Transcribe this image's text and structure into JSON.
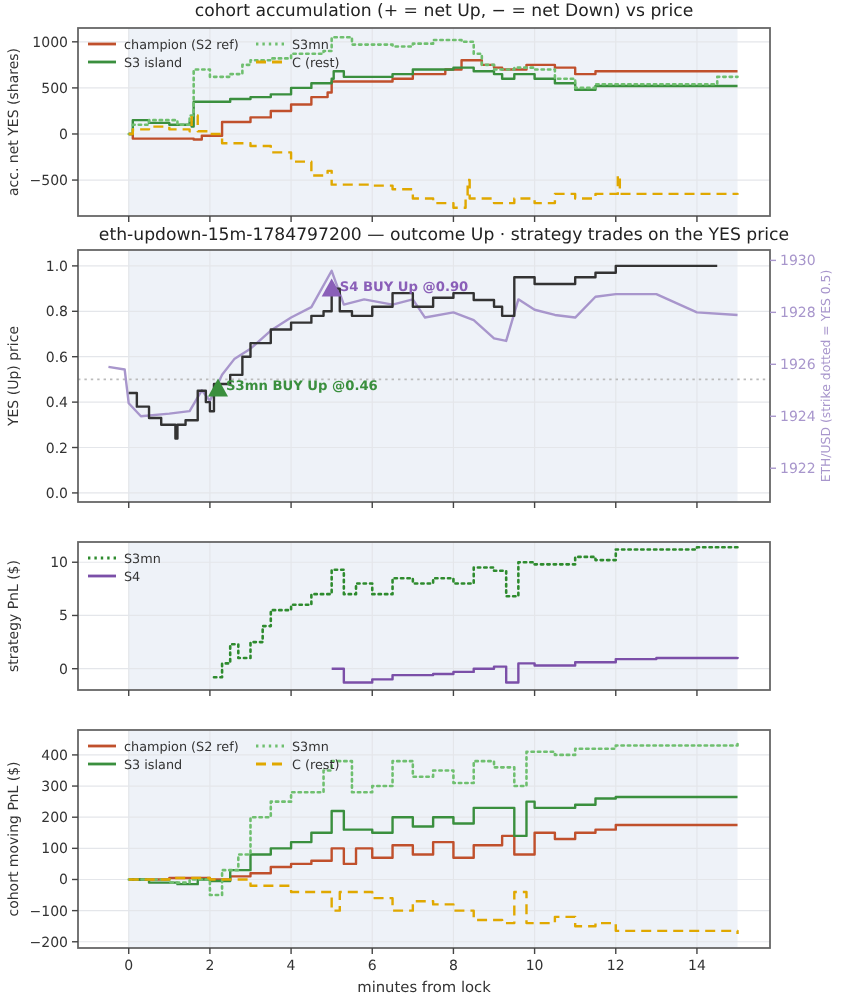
{
  "chart_data": [
    {
      "type": "step",
      "title": "cohort accumulation (+ = net Up, − = net Down) vs price",
      "ylabel": "acc. net YES (shares)",
      "xlim": [
        -1.25,
        15.8
      ],
      "xticks": [
        {
          "value": 0,
          "label": null
        },
        {
          "value": 2,
          "label": null
        },
        {
          "value": 4,
          "label": null
        },
        {
          "value": 6,
          "label": null
        },
        {
          "value": 8,
          "label": null
        },
        {
          "value": 10,
          "label": null
        },
        {
          "value": 12,
          "label": null
        },
        {
          "value": 14,
          "label": null
        }
      ],
      "ylim": [
        -890,
        1150
      ],
      "yticks": [
        -500,
        0,
        500,
        1000
      ],
      "grid": true,
      "legend": "top left",
      "tick_labels": "y",
      "marker": "none",
      "bands": [
        {
          "axis": "x",
          "from": 0,
          "to": 15,
          "color": "#eef2f8"
        }
      ],
      "series": [
        {
          "name": "champion (S2 ref)",
          "color": "#c0502c",
          "line_style": "solid",
          "x": [
            0,
            0.1,
            1.6,
            1.8,
            2.3,
            3,
            3.5,
            4,
            4.5,
            4.9,
            5,
            6.5,
            7,
            7.8,
            8.2,
            8.7,
            9,
            9.2,
            9.8,
            10.5,
            11,
            11.5,
            15
          ],
          "values": [
            0,
            -50,
            -60,
            -20,
            130,
            180,
            250,
            320,
            400,
            450,
            570,
            600,
            650,
            700,
            800,
            750,
            720,
            700,
            750,
            720,
            650,
            680,
            680
          ]
        },
        {
          "name": "S3 island",
          "color": "#3a8f3e",
          "line_style": "solid",
          "x": [
            0,
            0.1,
            0.5,
            1,
            1.5,
            1.55,
            1.6,
            2.5,
            3,
            3.5,
            4,
            4.5,
            5,
            5.05,
            5.3,
            6,
            6.5,
            7,
            8,
            8.5,
            9,
            9.2,
            9.5,
            10,
            10.5,
            11,
            11.5,
            15
          ],
          "values": [
            0,
            150,
            120,
            100,
            130,
            80,
            350,
            380,
            400,
            430,
            500,
            550,
            600,
            680,
            620,
            620,
            650,
            700,
            720,
            680,
            650,
            600,
            650,
            600,
            550,
            480,
            520,
            520
          ]
        },
        {
          "name": "S3mn",
          "color": "#6fbf6f",
          "line_style": "dotted",
          "x": [
            0,
            0.1,
            0.5,
            1.2,
            1.5,
            1.6,
            2,
            2.5,
            2.8,
            3,
            3.5,
            4,
            4.8,
            5,
            5.5,
            6.5,
            7,
            7.5,
            8.2,
            8.5,
            8.7,
            9,
            9.5,
            10,
            10.5,
            11,
            11.5,
            13,
            14.5,
            15
          ],
          "values": [
            0,
            100,
            150,
            100,
            200,
            700,
            620,
            650,
            750,
            800,
            820,
            870,
            900,
            1050,
            970,
            950,
            980,
            1020,
            1000,
            870,
            750,
            700,
            720,
            700,
            600,
            500,
            540,
            540,
            620,
            620
          ]
        },
        {
          "name": "C (rest)",
          "color": "#e0a800",
          "line_style": "dashed",
          "x": [
            0,
            0.1,
            0.5,
            1,
            1.5,
            1.55,
            1.7,
            2,
            2.3,
            3,
            3.5,
            4,
            4.5,
            4.9,
            5,
            6,
            6.5,
            7,
            7.5,
            8,
            8.3,
            8.35,
            8.4,
            9,
            9.5,
            10,
            10.5,
            11,
            11.5,
            12,
            12.05,
            12.1,
            15
          ],
          "values": [
            0,
            50,
            80,
            50,
            30,
            200,
            30,
            0,
            -100,
            -130,
            -200,
            -300,
            -450,
            -400,
            -550,
            -560,
            -600,
            -700,
            -750,
            -800,
            -700,
            -500,
            -700,
            -750,
            -700,
            -750,
            -650,
            -700,
            -650,
            -650,
            -450,
            -650,
            -660
          ]
        }
      ]
    },
    {
      "type": "step",
      "title": "eth-updown-15m-1784797200 — outcome Up · strategy trades on the YES price",
      "ylabel": "YES (Up) price",
      "y2label": "ETH/USD (strike dotted = YES 0.5)",
      "xlim": [
        -1.25,
        15.8
      ],
      "xticks": [
        {
          "value": 0,
          "label": null
        },
        {
          "value": 2,
          "label": null
        },
        {
          "value": 4,
          "label": null
        },
        {
          "value": 6,
          "label": null
        },
        {
          "value": 8,
          "label": null
        },
        {
          "value": 10,
          "label": null
        },
        {
          "value": 12,
          "label": null
        },
        {
          "value": 14,
          "label": null
        }
      ],
      "ylim": [
        -0.04,
        1.07
      ],
      "yticks": [
        {
          "value": 0,
          "label": "0.0"
        },
        {
          "value": 0.2,
          "label": "0.2"
        },
        {
          "value": 0.4,
          "label": "0.4"
        },
        {
          "value": 0.6,
          "label": "0.6"
        },
        {
          "value": 0.8,
          "label": "0.8"
        },
        {
          "value": 1,
          "label": "1.0"
        }
      ],
      "y2lim": [
        1920.7,
        1930.4
      ],
      "y2ticks": [
        1922,
        1924,
        1926,
        1928,
        1930
      ],
      "grid": true,
      "tick_labels": "y",
      "marker": "none",
      "bands": [
        {
          "axis": "x",
          "from": 0,
          "to": 15,
          "color": "#eef2f8"
        }
      ],
      "ref_lines": [
        {
          "axis": "y",
          "value": 0.5,
          "color": "#bbbbbb",
          "line_style": "dotted"
        }
      ],
      "annotations": [
        {
          "text": "S3mn BUY Up @0.46",
          "x": 2.2,
          "y": 0.46
        },
        {
          "text": "S4 BUY Up @0.90",
          "x": 5.0,
          "y": 0.9
        }
      ],
      "series": [
        {
          "type": "line",
          "axis": "y2",
          "color": "#a896cc",
          "line_style": "solid",
          "x": [
            -0.5,
            -0.1,
            0,
            0.3,
            1,
            1.5,
            1.8,
            2,
            2.3,
            2.6,
            3,
            3.5,
            4,
            4.5,
            5,
            5.3,
            5.8,
            6.5,
            7,
            7.3,
            8,
            8.5,
            9,
            9.3,
            9.6,
            10,
            10.5,
            11,
            11.5,
            12,
            13,
            14,
            15
          ],
          "values": [
            1925.9,
            1925.8,
            1924.5,
            1924,
            1924.1,
            1924.2,
            1925,
            1924.6,
            1925.6,
            1926.2,
            1926.6,
            1927.3,
            1927.8,
            1928.2,
            1929.6,
            1928.3,
            1928.5,
            1928.3,
            1928.5,
            1927.8,
            1928,
            1927.7,
            1927,
            1926.9,
            1928.5,
            1928.1,
            1927.9,
            1927.8,
            1928.6,
            1928.7,
            1928.7,
            1928,
            1927.9
          ]
        },
        {
          "color": "#333333",
          "line_style": "solid",
          "x": [
            0,
            0.2,
            0.5,
            0.8,
            1.15,
            1.2,
            1.4,
            1.7,
            1.9,
            2,
            2.1,
            2.5,
            2.8,
            3,
            3.5,
            4,
            4.5,
            4.8,
            5,
            5.2,
            5.5,
            6,
            6.5,
            7,
            7.5,
            8,
            8.5,
            9,
            9.2,
            9.5,
            10,
            11,
            11.5,
            12,
            14.5
          ],
          "values": [
            0.44,
            0.38,
            0.33,
            0.3,
            0.24,
            0.3,
            0.32,
            0.45,
            0.4,
            0.36,
            0.48,
            0.52,
            0.6,
            0.66,
            0.72,
            0.75,
            0.78,
            0.8,
            0.9,
            0.8,
            0.78,
            0.82,
            0.88,
            0.82,
            0.86,
            0.88,
            0.85,
            0.82,
            0.78,
            0.95,
            0.92,
            0.95,
            0.97,
            1.0,
            1.0
          ]
        },
        {
          "type": "scatter",
          "marker": "triangle",
          "color": "#3a8f3e",
          "x": [
            2.2
          ],
          "values": [
            0.46
          ]
        },
        {
          "type": "scatter",
          "marker": "triangle",
          "color": "#8a5fb8",
          "x": [
            5.0
          ],
          "values": [
            0.9
          ]
        }
      ]
    },
    {
      "type": "step",
      "ylabel": "strategy PnL ($)",
      "xlim": [
        -1.25,
        15.8
      ],
      "xticks": [
        {
          "value": 0,
          "label": null
        },
        {
          "value": 2,
          "label": null
        },
        {
          "value": 4,
          "label": null
        },
        {
          "value": 6,
          "label": null
        },
        {
          "value": 8,
          "label": null
        },
        {
          "value": 10,
          "label": null
        },
        {
          "value": 12,
          "label": null
        },
        {
          "value": 14,
          "label": null
        }
      ],
      "ylim": [
        -2,
        11.9
      ],
      "yticks": [
        0,
        5,
        10
      ],
      "grid": true,
      "legend": "top left",
      "tick_labels": "y",
      "marker": "none",
      "bands": [
        {
          "axis": "x",
          "from": 0,
          "to": 15,
          "color": "#eef2f8"
        }
      ],
      "series": [
        {
          "name": "S3mn",
          "color": "#2e8b2e",
          "line_style": "dotted",
          "x": [
            2.1,
            2.3,
            2.5,
            2.7,
            3,
            3.3,
            3.5,
            4,
            4.5,
            5,
            5.3,
            5.6,
            6,
            6.5,
            7,
            7.5,
            8,
            8.5,
            9,
            9.3,
            9.6,
            10,
            11,
            11.5,
            12,
            13,
            14,
            15
          ],
          "values": [
            -0.8,
            0.5,
            2.3,
            1,
            2.5,
            4,
            5.5,
            6,
            7,
            9.3,
            7,
            8,
            7,
            8.5,
            8,
            8.5,
            8,
            9.5,
            9.2,
            6.8,
            10,
            9.8,
            10.5,
            10.2,
            11.2,
            11.2,
            11.4,
            11.4
          ]
        },
        {
          "name": "S4",
          "color": "#7b4fa8",
          "line_style": "solid",
          "x": [
            5,
            5.3,
            6,
            6.5,
            7.5,
            8,
            8.5,
            9,
            9.3,
            9.6,
            10,
            11,
            12,
            13,
            15
          ],
          "values": [
            0,
            -1.3,
            -1,
            -0.6,
            -0.5,
            -0.3,
            0,
            0.2,
            -1.3,
            0.5,
            0.3,
            0.6,
            0.9,
            1,
            1.1
          ]
        }
      ]
    },
    {
      "type": "step",
      "ylabel": "cohort moving PnL ($)",
      "xlabel": "minutes from lock",
      "xlim": [
        -1.25,
        15.8
      ],
      "xticks": [
        0,
        2,
        4,
        6,
        8,
        10,
        12,
        14
      ],
      "ylim": [
        -220,
        480
      ],
      "yticks": [
        -200,
        -100,
        0,
        100,
        200,
        300,
        400
      ],
      "grid": true,
      "legend": "top left",
      "marker": "none",
      "bands": [
        {
          "axis": "x",
          "from": 0,
          "to": 15,
          "color": "#eef2f8"
        }
      ],
      "series": [
        {
          "name": "champion (S2 ref)",
          "color": "#c0502c",
          "line_style": "solid",
          "x": [
            0,
            1,
            2,
            2.5,
            3,
            3.5,
            4,
            4.5,
            5,
            5.3,
            5.6,
            6,
            6.5,
            7,
            7.5,
            8,
            8.5,
            9.2,
            9.5,
            10,
            10.5,
            11,
            11.5,
            12,
            15
          ],
          "values": [
            0,
            5,
            0,
            10,
            20,
            40,
            50,
            60,
            100,
            50,
            100,
            70,
            110,
            80,
            120,
            70,
            110,
            140,
            80,
            150,
            130,
            150,
            160,
            175,
            175
          ]
        },
        {
          "name": "S3 island",
          "color": "#3a8f3e",
          "line_style": "solid",
          "x": [
            0,
            0.5,
            1.2,
            1.7,
            2,
            2.5,
            3,
            3.5,
            4,
            4.5,
            5,
            5.3,
            6,
            6.5,
            7,
            7.5,
            8,
            8.5,
            9.3,
            9.5,
            9.8,
            10,
            11,
            11.5,
            12,
            15
          ],
          "values": [
            0,
            -10,
            -15,
            0,
            -5,
            30,
            80,
            100,
            120,
            150,
            220,
            160,
            150,
            200,
            170,
            200,
            180,
            230,
            230,
            140,
            250,
            230,
            240,
            260,
            265,
            265
          ]
        },
        {
          "name": "S3mn",
          "color": "#6fbf6f",
          "line_style": "dotted",
          "x": [
            0,
            1,
            1.5,
            2,
            2.3,
            2.7,
            3,
            3.5,
            4,
            4.8,
            5,
            5.5,
            6,
            6.5,
            7,
            7.5,
            8,
            8.5,
            9,
            9.5,
            9.8,
            10.5,
            11,
            12,
            15
          ],
          "values": [
            0,
            -10,
            0,
            -50,
            30,
            80,
            200,
            250,
            280,
            350,
            380,
            280,
            300,
            380,
            330,
            350,
            310,
            380,
            360,
            300,
            410,
            400,
            420,
            430,
            435
          ]
        },
        {
          "name": "C (rest)",
          "color": "#e0a800",
          "line_style": "dashed",
          "x": [
            0,
            1,
            2,
            3,
            4,
            5,
            5.2,
            6,
            6.5,
            7,
            7.5,
            8,
            8.5,
            9.2,
            9.5,
            9.8,
            10.5,
            11,
            11.5,
            12,
            15
          ],
          "values": [
            0,
            5,
            0,
            -20,
            -40,
            -100,
            -40,
            -60,
            -100,
            -70,
            -80,
            -100,
            -130,
            -140,
            -40,
            -140,
            -120,
            -150,
            -140,
            -165,
            -175
          ]
        }
      ]
    }
  ]
}
